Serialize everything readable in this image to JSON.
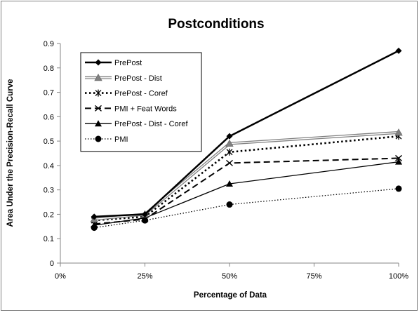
{
  "chart_data": {
    "type": "line",
    "title": "Postconditions",
    "xlabel": "Percentage of Data",
    "ylabel": "Area Under the Precision-Recall  Curve",
    "x": [
      10,
      25,
      50,
      100
    ],
    "xlim": [
      0,
      100
    ],
    "ylim": [
      0,
      0.9
    ],
    "x_ticks": [
      0,
      25,
      50,
      75,
      100
    ],
    "x_tick_labels": [
      "0%",
      "25%",
      "50%",
      "75%",
      "100%"
    ],
    "y_ticks": [
      0,
      0.1,
      0.2,
      0.3,
      0.4,
      0.5,
      0.6,
      0.7,
      0.8,
      0.9
    ],
    "y_tick_labels": [
      "0",
      "0.1",
      "0.2",
      "0.3",
      "0.4",
      "0.5",
      "0.6",
      "0.7",
      "0.8",
      "0.9"
    ],
    "grid": false,
    "legend_position": "top-left",
    "series": [
      {
        "name": "PrePost",
        "values": [
          0.19,
          0.2,
          0.52,
          0.87
        ],
        "style": "solid-thick",
        "marker": "diamond",
        "color": "#000000"
      },
      {
        "name": "PrePost - Dist",
        "values": [
          0.18,
          0.2,
          0.49,
          0.535
        ],
        "style": "double-gray",
        "marker": "triangle-gray",
        "color": "#808080"
      },
      {
        "name": "PrePost - Coref",
        "values": [
          0.175,
          0.19,
          0.455,
          0.52
        ],
        "style": "dotted-thick",
        "marker": "asterisk",
        "color": "#000000"
      },
      {
        "name": "PMI + Feat Words",
        "values": [
          0.16,
          0.18,
          0.41,
          0.43
        ],
        "style": "dashed",
        "marker": "x",
        "color": "#000000"
      },
      {
        "name": "PrePost - Dist - Coref",
        "values": [
          0.155,
          0.185,
          0.325,
          0.415
        ],
        "style": "solid-thin",
        "marker": "triangle",
        "color": "#000000"
      },
      {
        "name": "PMI",
        "values": [
          0.145,
          0.175,
          0.24,
          0.305
        ],
        "style": "dotted-thin",
        "marker": "circle",
        "color": "#000000"
      }
    ]
  }
}
